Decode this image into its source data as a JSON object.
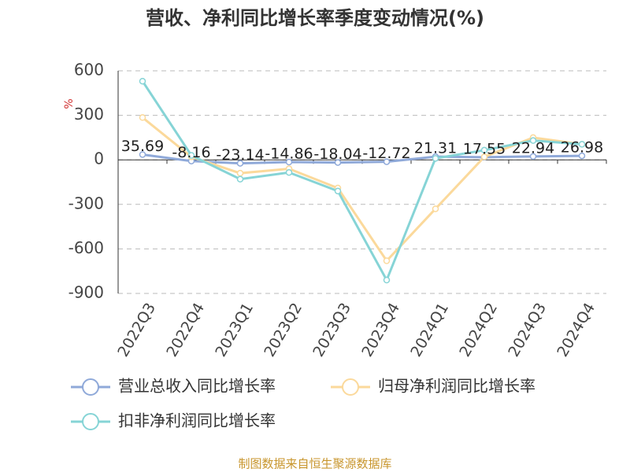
{
  "chart_data": {
    "type": "line",
    "title": "营收、净利同比增长率季度变动情况(%)",
    "y_label": "%",
    "source": "制图数据来自恒生聚源数据库",
    "categories": [
      "2022Q3",
      "2022Q4",
      "2023Q1",
      "2023Q2",
      "2023Q3",
      "2023Q4",
      "2024Q1",
      "2024Q2",
      "2024Q3",
      "2024Q4"
    ],
    "series": [
      {
        "name": "营业总收入同比增长率",
        "color": "#8fa9d9",
        "values": [
          35.69,
          -8.16,
          -23.14,
          -14.86,
          -18.04,
          -12.72,
          21.31,
          17.55,
          22.94,
          26.98
        ]
      },
      {
        "name": "归母净利润同比增长率",
        "color": "#fbd99b",
        "values": [
          285,
          20,
          -90,
          -60,
          -190,
          -680,
          -330,
          20,
          150,
          105
        ]
      },
      {
        "name": "扣非净利润同比增长率",
        "color": "#86d4d6",
        "values": [
          530,
          30,
          -130,
          -85,
          -210,
          -810,
          10,
          65,
          130,
          105
        ]
      }
    ],
    "ylim": [
      -900,
      600
    ],
    "yticks": [
      -900,
      -600,
      -300,
      0,
      300,
      600
    ],
    "grid": true,
    "labeled_series": 0
  }
}
